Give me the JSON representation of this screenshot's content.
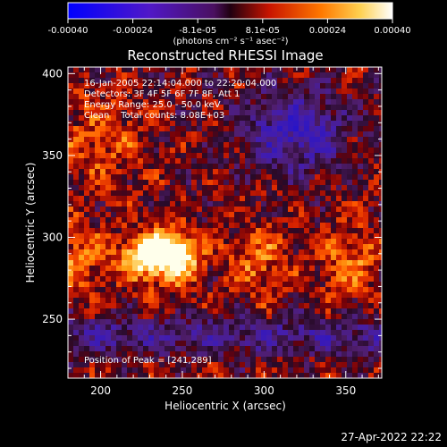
{
  "colorbar": {
    "tick_labels": [
      "-0.00040",
      "-0.00024",
      "-8.1e-05",
      "8.1e-05",
      "0.00024",
      "0.00040"
    ],
    "unit_label": "(photons cm⁻² s⁻¹ asec⁻²)"
  },
  "chart_data": {
    "type": "heatmap",
    "title": "Reconstructed RHESSI Image",
    "xlabel": "Heliocentric X (arcsec)",
    "ylabel": "Heliocentric Y (arcsec)",
    "xlim": [
      180,
      372
    ],
    "ylim": [
      214,
      404
    ],
    "x_ticks": [
      200,
      250,
      300,
      350
    ],
    "y_ticks": [
      250,
      300,
      350,
      400
    ],
    "colorbar_range": [
      -0.0004,
      0.0004
    ],
    "peak": [
      241,
      289
    ]
  },
  "info": {
    "line1": "16-Jan-2005 22:14:04.000 to 22:20:04.000",
    "line2": "Detectors: 3F 4F 5F 6F 7F 8F, Att 1",
    "line3": "Energy Range: 25.0 - 50.0 keV",
    "line4": "Clean    Total counts: 8.08E+03"
  },
  "peak_label": "Position of Peak = [241,289]",
  "timestamp": "27-Apr-2022 22:22"
}
